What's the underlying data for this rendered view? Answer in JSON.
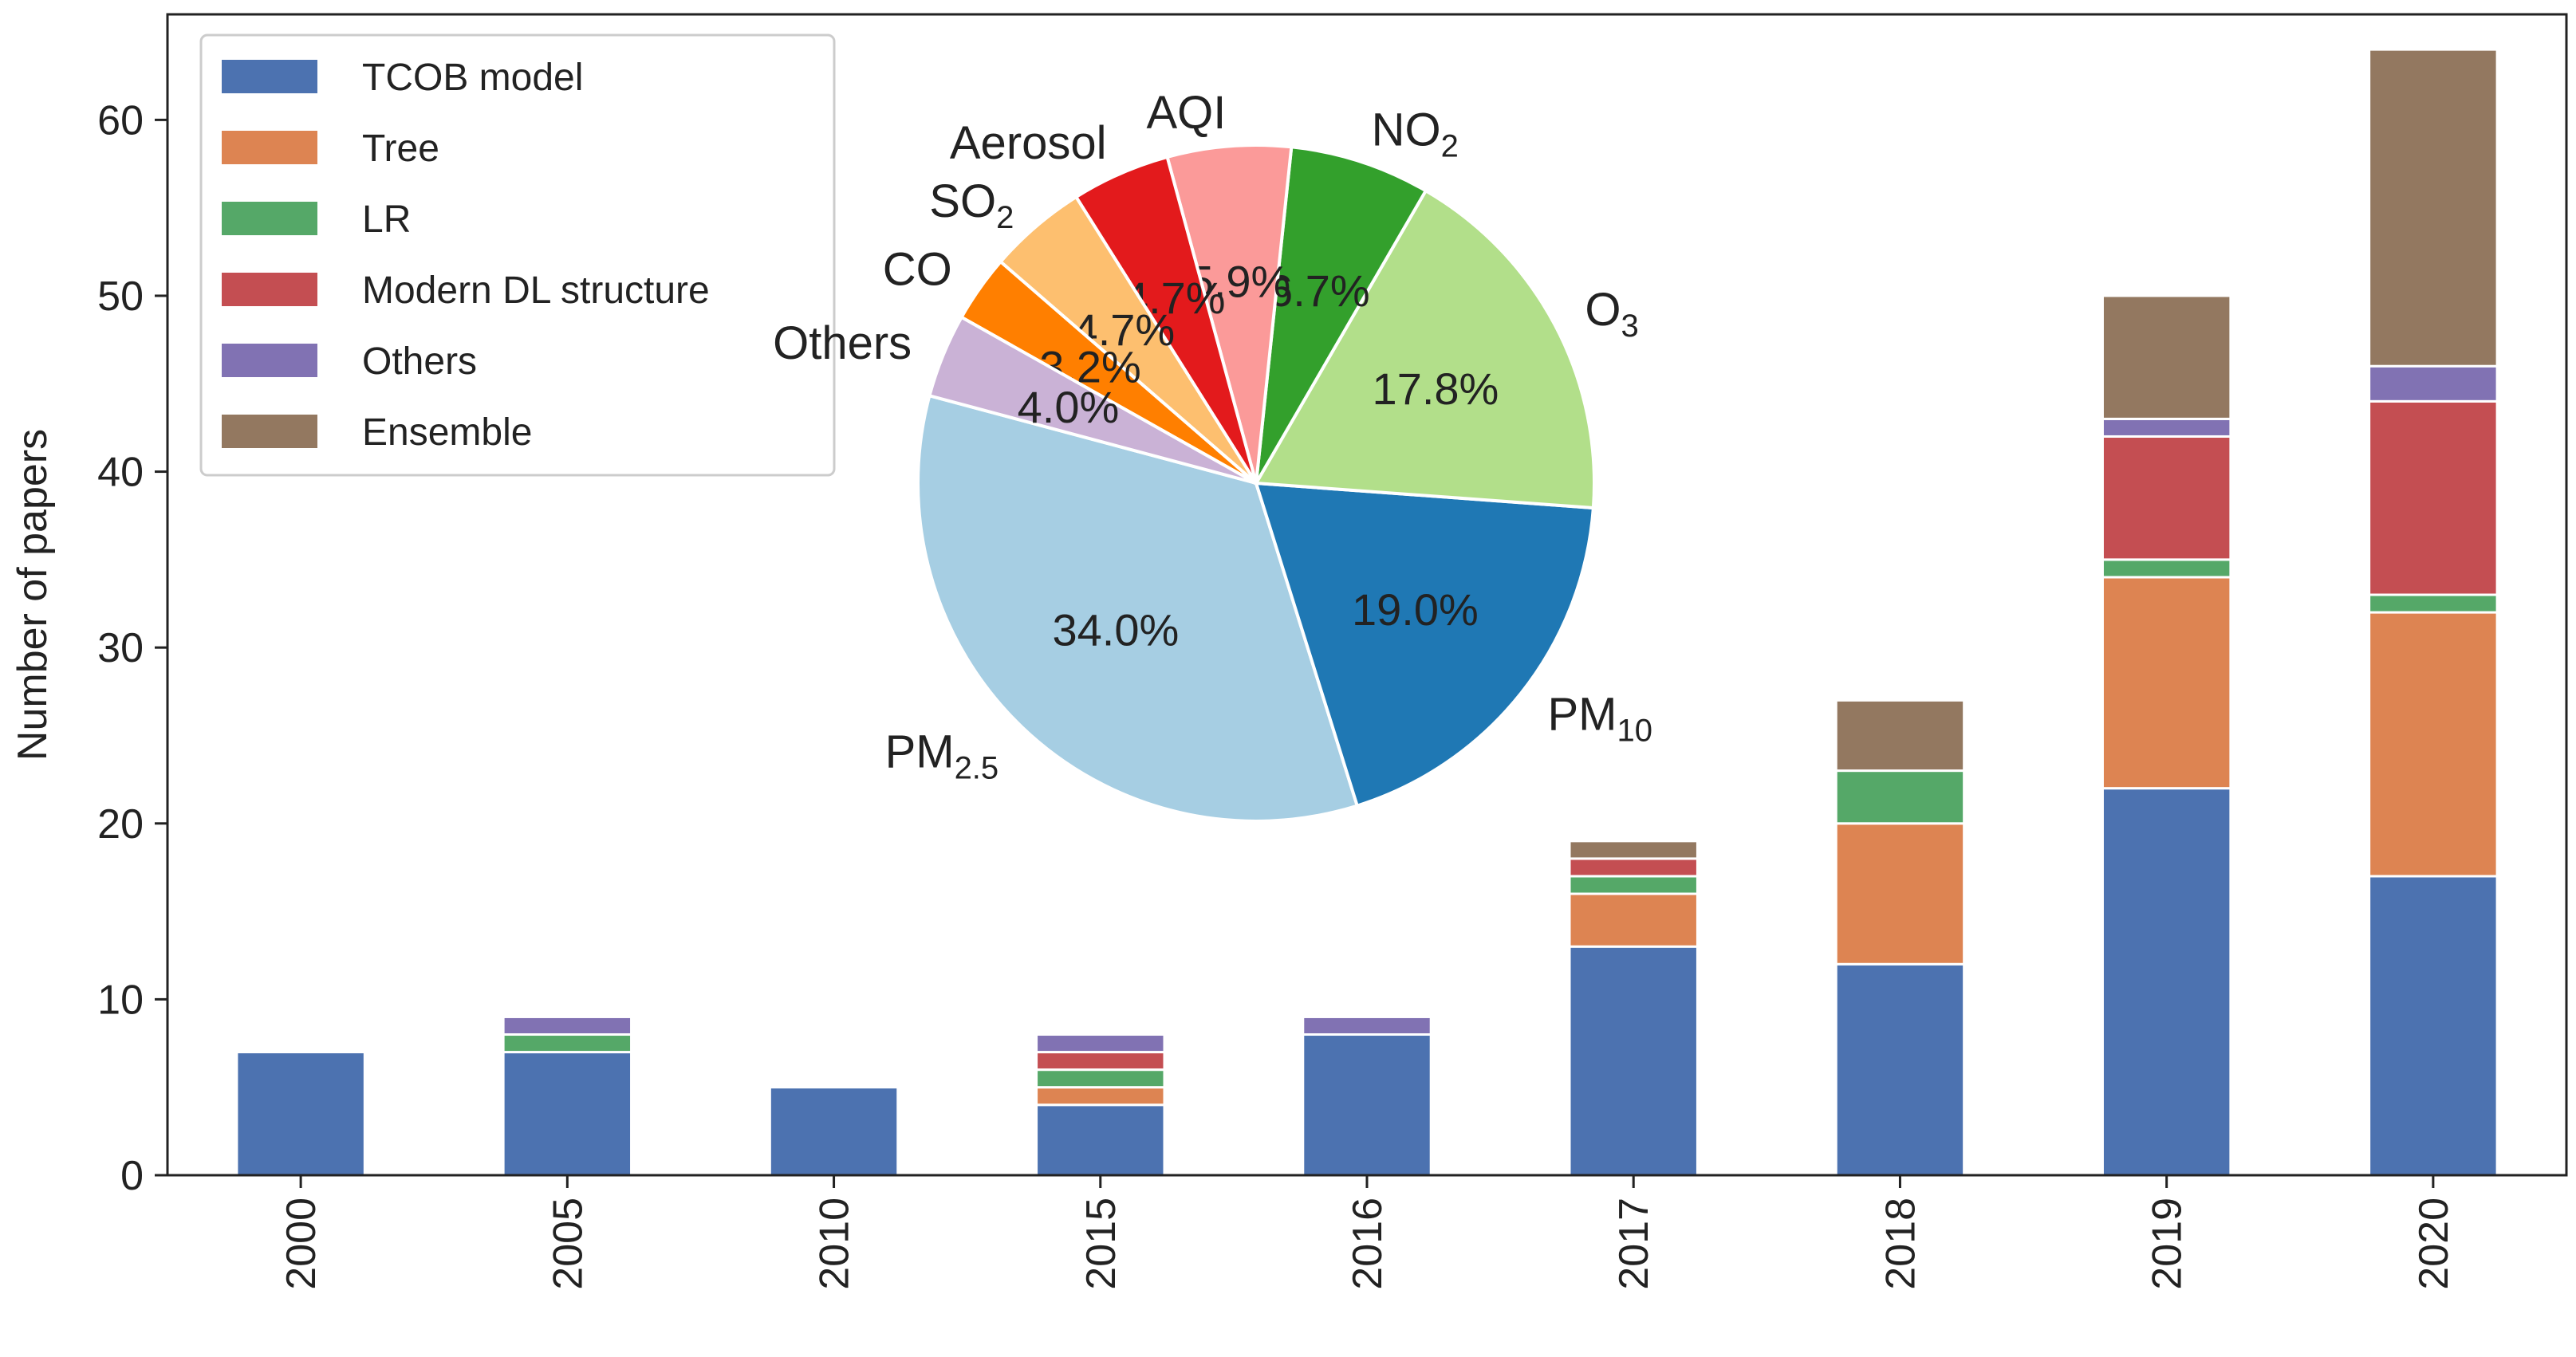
{
  "chart_data": [
    {
      "type": "bar",
      "stacked": true,
      "title": "",
      "xlabel": "",
      "ylabel": "Number of papers",
      "ylim": [
        0,
        66
      ],
      "yticks": [
        0,
        10,
        20,
        30,
        40,
        50,
        60
      ],
      "grid": false,
      "legend_position": "top-left",
      "categories": [
        "2000",
        "2005",
        "2010",
        "2015",
        "2016",
        "2017",
        "2018",
        "2019",
        "2020"
      ],
      "series": [
        {
          "name": "TCOB model",
          "color": "#4c72b0",
          "values": [
            7,
            7,
            5,
            4,
            8,
            13,
            12,
            22,
            17
          ]
        },
        {
          "name": "Tree",
          "color": "#dd8452",
          "values": [
            0,
            0,
            0,
            1,
            0,
            3,
            8,
            12,
            15
          ]
        },
        {
          "name": "LR",
          "color": "#55a868",
          "values": [
            0,
            1,
            0,
            1,
            0,
            1,
            3,
            1,
            1
          ]
        },
        {
          "name": "Modern DL structure",
          "color": "#c44e52",
          "values": [
            0,
            0,
            0,
            1,
            0,
            1,
            0,
            7,
            11
          ]
        },
        {
          "name": "Others",
          "color": "#8172b3",
          "values": [
            0,
            1,
            0,
            1,
            1,
            0,
            0,
            1,
            2
          ]
        },
        {
          "name": "Ensemble",
          "color": "#937860",
          "values": [
            0,
            0,
            0,
            0,
            0,
            1,
            4,
            7,
            18
          ]
        }
      ]
    },
    {
      "type": "pie",
      "start_angle_deg": 165,
      "direction": "counterclockwise",
      "slices": [
        {
          "label": "PM",
          "sub": "2.5",
          "value": 34.0,
          "pct_text": "34.0%",
          "color": "#a6cee3"
        },
        {
          "label": "PM",
          "sub": "10",
          "value": 19.0,
          "pct_text": "19.0%",
          "color": "#1f78b4"
        },
        {
          "label": "O",
          "sub": "3",
          "value": 17.8,
          "pct_text": "17.8%",
          "color": "#b2df8a"
        },
        {
          "label": "NO",
          "sub": "2",
          "value": 6.7,
          "pct_text": "6.7%",
          "color": "#33a02c"
        },
        {
          "label": "AQI",
          "sub": "",
          "value": 5.9,
          "pct_text": "5.9%",
          "color": "#fb9a99"
        },
        {
          "label": "Aerosol",
          "sub": "",
          "value": 4.7,
          "pct_text": "4.7%",
          "color": "#e31a1c"
        },
        {
          "label": "SO",
          "sub": "2",
          "value": 4.7,
          "pct_text": "4.7%",
          "color": "#fdbf6f"
        },
        {
          "label": "CO",
          "sub": "",
          "value": 3.2,
          "pct_text": "3.2%",
          "color": "#ff7f00"
        },
        {
          "label": "Others",
          "sub": "",
          "value": 4.0,
          "pct_text": "4.0%",
          "color": "#cab2d6"
        }
      ]
    }
  ]
}
